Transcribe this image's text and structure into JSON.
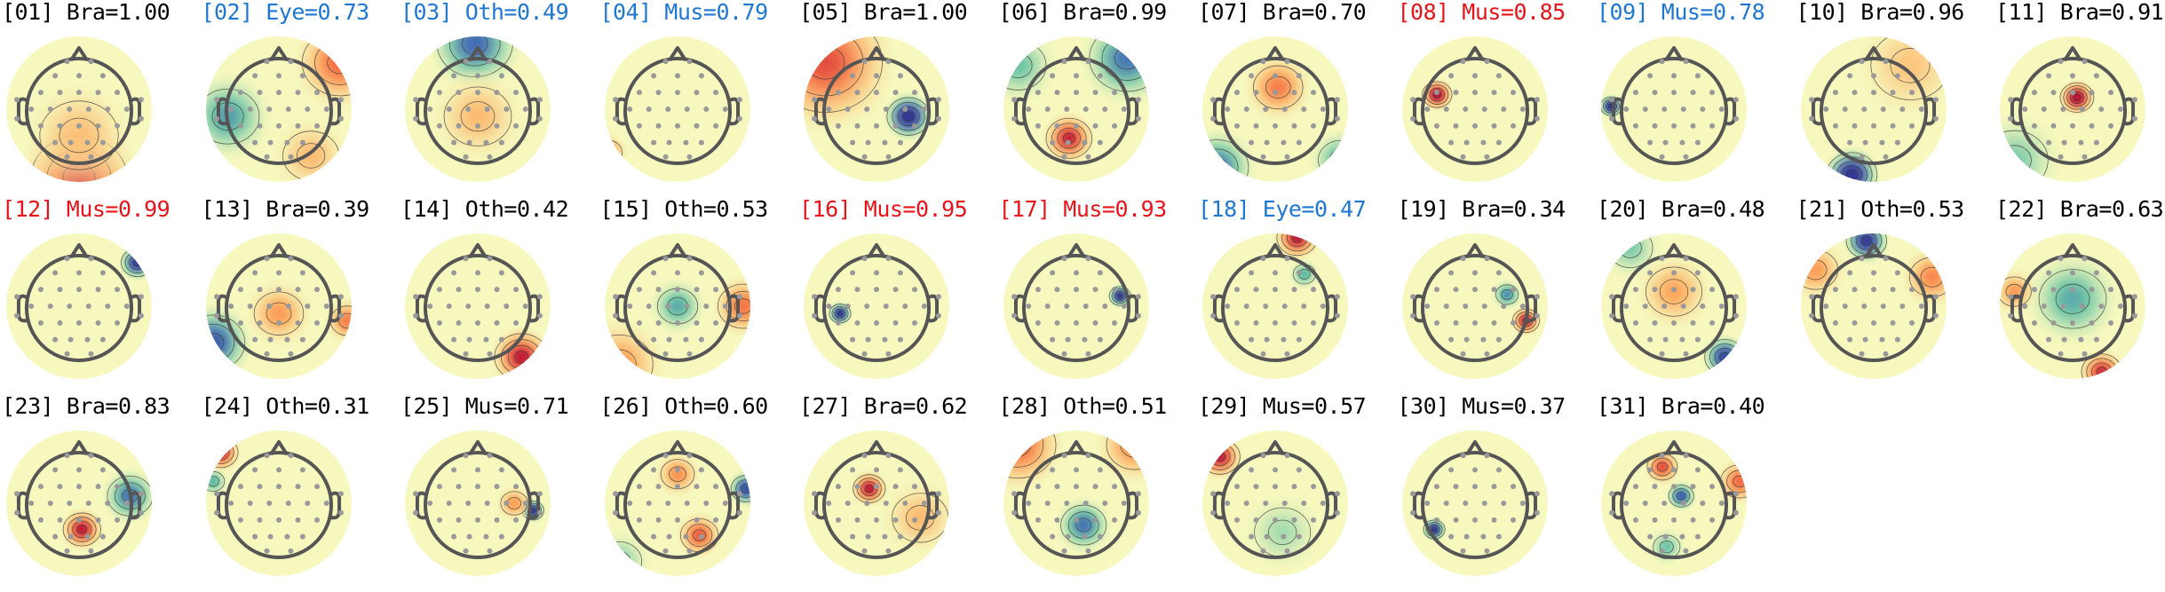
{
  "colors": {
    "default_label": "#000000",
    "eye_label": "#1f77d4",
    "muscle_flag_label": "#e8141a",
    "scalp_positive": "#c5263d",
    "scalp_negative": "#2e68b5",
    "scalp_neutral": "#f6f8bd",
    "head_outline": "#555555",
    "sensor_dot": "#999999"
  },
  "components": [
    {
      "index": "[01]",
      "text": "Bra=1.00",
      "label_color": "default",
      "label": "Bra",
      "score": 1.0,
      "sources": [
        {
          "u": 0.5,
          "v": 0.97,
          "s": 0.38,
          "w": 1.7
        },
        {
          "u": 0.5,
          "v": 0.68,
          "s": 0.35,
          "w": 0.55
        }
      ],
      "contour_icon": "isoline-icon"
    },
    {
      "index": "[02]",
      "text": "Eye=0.73",
      "label_color": "eye",
      "label": "Eye",
      "score": 0.73,
      "sources": [
        {
          "u": 0.92,
          "v": 0.18,
          "s": 0.3,
          "w": 1.4
        },
        {
          "u": 0.15,
          "v": 0.55,
          "s": 0.28,
          "w": -1.0
        },
        {
          "u": 0.72,
          "v": 0.82,
          "s": 0.25,
          "w": 0.6
        }
      ],
      "contour_icon": "isoline-icon"
    },
    {
      "index": "[03]",
      "text": "Oth=0.49",
      "label_color": "eye",
      "label": "Oth",
      "score": 0.49,
      "sources": [
        {
          "u": 0.48,
          "v": 0.05,
          "s": 0.3,
          "w": -1.4
        },
        {
          "u": 0.5,
          "v": 0.55,
          "s": 0.3,
          "w": 0.6
        }
      ],
      "contour_icon": "isoline-icon"
    },
    {
      "index": "[04]",
      "text": "Mus=0.79",
      "label_color": "eye",
      "label": "Mus",
      "score": 0.79,
      "sources": [
        {
          "u": 0.02,
          "v": 0.8,
          "s": 0.13,
          "w": 1.2
        },
        {
          "u": 0.04,
          "v": 0.95,
          "s": 0.1,
          "w": -0.8
        }
      ],
      "contour_icon": "isoline-icon"
    },
    {
      "index": "[05]",
      "text": "Bra=1.00",
      "label_color": "default",
      "label": "Bra",
      "score": 1.0,
      "sources": [
        {
          "u": 0.15,
          "v": 0.18,
          "s": 0.45,
          "w": 1.6
        },
        {
          "u": 0.72,
          "v": 0.55,
          "s": 0.16,
          "w": -2.2
        }
      ],
      "contour_icon": "isoline-icon"
    },
    {
      "index": "[06]",
      "text": "Bra=0.99",
      "label_color": "default",
      "label": "Bra",
      "score": 0.99,
      "sources": [
        {
          "u": 0.45,
          "v": 0.7,
          "s": 0.17,
          "w": 1.9
        },
        {
          "u": 0.85,
          "v": 0.15,
          "s": 0.3,
          "w": -1.3
        },
        {
          "u": 0.1,
          "v": 0.2,
          "s": 0.25,
          "w": -0.7
        }
      ],
      "contour_icon": "isoline-icon"
    },
    {
      "index": "[07]",
      "text": "Bra=0.70",
      "label_color": "default",
      "label": "Bra",
      "score": 0.7,
      "sources": [
        {
          "u": 0.52,
          "v": 0.35,
          "s": 0.22,
          "w": 1.2
        },
        {
          "u": 0.1,
          "v": 0.9,
          "s": 0.25,
          "w": -1.3
        },
        {
          "u": 0.95,
          "v": 0.85,
          "s": 0.2,
          "w": -0.9
        }
      ],
      "contour_icon": "isoline-icon"
    },
    {
      "index": "[08]",
      "text": "Mus=0.85",
      "label_color": "muscle_flag",
      "label": "Mus",
      "score": 0.85,
      "sources": [
        {
          "u": 0.24,
          "v": 0.4,
          "s": 0.11,
          "w": 2.2
        }
      ],
      "contour_icon": "isoline-icon"
    },
    {
      "index": "[09]",
      "text": "Mus=0.78",
      "label_color": "eye",
      "label": "Mus",
      "score": 0.78,
      "sources": [
        {
          "u": 0.07,
          "v": 0.48,
          "s": 0.08,
          "w": -2.2
        }
      ],
      "contour_icon": "isoline-icon"
    },
    {
      "index": "[10]",
      "text": "Bra=0.96",
      "label_color": "default",
      "label": "Bra",
      "score": 0.96,
      "sources": [
        {
          "u": 0.35,
          "v": 0.95,
          "s": 0.18,
          "w": -2.3
        },
        {
          "u": 0.75,
          "v": 0.2,
          "s": 0.35,
          "w": 0.5
        }
      ],
      "contour_icon": "isoline-icon"
    },
    {
      "index": "[11]",
      "text": "Bra=0.91",
      "label_color": "default",
      "label": "Bra",
      "score": 0.91,
      "sources": [
        {
          "u": 0.53,
          "v": 0.42,
          "s": 0.12,
          "w": 2.3
        },
        {
          "u": 0.1,
          "v": 0.85,
          "s": 0.3,
          "w": -0.6
        }
      ],
      "contour_icon": "isoline-icon"
    },
    {
      "index": "[12]",
      "text": "Mus=0.99",
      "label_color": "muscle_flag",
      "label": "Mus",
      "score": 0.99,
      "sources": [
        {
          "u": 0.9,
          "v": 0.2,
          "s": 0.12,
          "w": -2.0
        }
      ],
      "contour_icon": "isoline-icon"
    },
    {
      "index": "[13]",
      "text": "Bra=0.39",
      "label_color": "default",
      "label": "Bra",
      "score": 0.39,
      "sources": [
        {
          "u": 0.5,
          "v": 0.55,
          "s": 0.22,
          "w": 0.9
        },
        {
          "u": 0.05,
          "v": 0.75,
          "s": 0.25,
          "w": -1.6
        },
        {
          "u": 0.97,
          "v": 0.6,
          "s": 0.15,
          "w": 1.2
        }
      ],
      "contour_icon": "isoline-icon"
    },
    {
      "index": "[14]",
      "text": "Oth=0.42",
      "label_color": "default",
      "label": "Oth",
      "score": 0.42,
      "sources": [
        {
          "u": 0.8,
          "v": 0.85,
          "s": 0.2,
          "w": 2.0
        }
      ],
      "contour_icon": "isoline-icon"
    },
    {
      "index": "[15]",
      "text": "Oth=0.53",
      "label_color": "default",
      "label": "Oth",
      "score": 0.53,
      "sources": [
        {
          "u": 0.5,
          "v": 0.5,
          "s": 0.18,
          "w": -0.9
        },
        {
          "u": 0.95,
          "v": 0.5,
          "s": 0.2,
          "w": 1.3
        },
        {
          "u": 0.1,
          "v": 0.9,
          "s": 0.3,
          "w": 0.9
        }
      ],
      "contour_icon": "isoline-icon"
    },
    {
      "index": "[16]",
      "text": "Mus=0.95",
      "label_color": "muscle_flag",
      "label": "Mus",
      "score": 0.95,
      "sources": [
        {
          "u": 0.25,
          "v": 0.55,
          "s": 0.08,
          "w": -2.0
        }
      ],
      "contour_icon": "isoline-icon"
    },
    {
      "index": "[17]",
      "text": "Mus=0.93",
      "label_color": "muscle_flag",
      "label": "Mus",
      "score": 0.93,
      "sources": [
        {
          "u": 0.8,
          "v": 0.43,
          "s": 0.08,
          "w": -2.0
        }
      ],
      "contour_icon": "isoline-icon"
    },
    {
      "index": "[18]",
      "text": "Eye=0.47",
      "label_color": "eye",
      "label": "Eye",
      "score": 0.47,
      "sources": [
        {
          "u": 0.65,
          "v": 0.03,
          "s": 0.15,
          "w": 2.0
        },
        {
          "u": 0.7,
          "v": 0.28,
          "s": 0.1,
          "w": -0.8
        }
      ],
      "contour_icon": "isoline-icon"
    },
    {
      "index": "[19]",
      "text": "Bra=0.34",
      "label_color": "default",
      "label": "Bra",
      "score": 0.34,
      "sources": [
        {
          "u": 0.85,
          "v": 0.6,
          "s": 0.1,
          "w": 2.0
        },
        {
          "u": 0.72,
          "v": 0.42,
          "s": 0.1,
          "w": -1.1
        }
      ],
      "contour_icon": "isoline-icon"
    },
    {
      "index": "[20]",
      "text": "Bra=0.48",
      "label_color": "default",
      "label": "Bra",
      "score": 0.48,
      "sources": [
        {
          "u": 0.5,
          "v": 0.4,
          "s": 0.25,
          "w": 0.8
        },
        {
          "u": 0.85,
          "v": 0.85,
          "s": 0.15,
          "w": -1.8
        },
        {
          "u": 0.2,
          "v": 0.1,
          "s": 0.2,
          "w": -0.6
        }
      ],
      "contour_icon": "isoline-icon"
    },
    {
      "index": "[21]",
      "text": "Oth=0.53",
      "label_color": "default",
      "label": "Oth",
      "score": 0.53,
      "sources": [
        {
          "u": 0.45,
          "v": 0.05,
          "s": 0.15,
          "w": -2.0
        },
        {
          "u": 0.9,
          "v": 0.3,
          "s": 0.2,
          "w": 1.1
        },
        {
          "u": 0.1,
          "v": 0.25,
          "s": 0.2,
          "w": 0.9
        }
      ],
      "contour_icon": "isoline-icon"
    },
    {
      "index": "[22]",
      "text": "Bra=0.63",
      "label_color": "default",
      "label": "Bra",
      "score": 0.63,
      "sources": [
        {
          "u": 0.5,
          "v": 0.45,
          "s": 0.3,
          "w": -0.9
        },
        {
          "u": 0.7,
          "v": 0.95,
          "s": 0.15,
          "w": 1.8
        },
        {
          "u": 0.1,
          "v": 0.4,
          "s": 0.15,
          "w": 0.9
        }
      ],
      "contour_icon": "isoline-icon"
    },
    {
      "index": "[23]",
      "text": "Bra=0.83",
      "label_color": "default",
      "label": "Bra",
      "score": 0.83,
      "sources": [
        {
          "u": 0.52,
          "v": 0.68,
          "s": 0.14,
          "w": 2.0
        },
        {
          "u": 0.85,
          "v": 0.45,
          "s": 0.18,
          "w": -1.3
        }
      ],
      "contour_icon": "isoline-icon"
    },
    {
      "index": "[24]",
      "text": "Oth=0.31",
      "label_color": "default",
      "label": "Oth",
      "score": 0.31,
      "sources": [
        {
          "u": 0.1,
          "v": 0.15,
          "s": 0.13,
          "w": 2.0
        },
        {
          "u": 0.05,
          "v": 0.35,
          "s": 0.1,
          "w": -0.8
        }
      ],
      "contour_icon": "isoline-icon"
    },
    {
      "index": "[25]",
      "text": "Mus=0.71",
      "label_color": "default",
      "label": "Mus",
      "score": 0.71,
      "sources": [
        {
          "u": 0.88,
          "v": 0.55,
          "s": 0.08,
          "w": -2.0
        },
        {
          "u": 0.75,
          "v": 0.5,
          "s": 0.12,
          "w": 0.9
        }
      ],
      "contour_icon": "isoline-icon"
    },
    {
      "index": "[26]",
      "text": "Oth=0.60",
      "label_color": "default",
      "label": "Oth",
      "score": 0.6,
      "sources": [
        {
          "u": 0.65,
          "v": 0.72,
          "s": 0.15,
          "w": 1.5
        },
        {
          "u": 0.5,
          "v": 0.3,
          "s": 0.15,
          "w": 1.0
        },
        {
          "u": 0.97,
          "v": 0.4,
          "s": 0.12,
          "w": -1.7
        },
        {
          "u": 0.1,
          "v": 0.9,
          "s": 0.2,
          "w": -0.6
        }
      ],
      "contour_icon": "isoline-icon"
    },
    {
      "index": "[27]",
      "text": "Bra=0.62",
      "label_color": "default",
      "label": "Bra",
      "score": 0.62,
      "sources": [
        {
          "u": 0.45,
          "v": 0.4,
          "s": 0.12,
          "w": 2.0
        },
        {
          "u": 0.8,
          "v": 0.6,
          "s": 0.25,
          "w": 0.6
        }
      ],
      "contour_icon": "isoline-icon"
    },
    {
      "index": "[28]",
      "text": "Oth=0.51",
      "label_color": "default",
      "label": "Oth",
      "score": 0.51,
      "sources": [
        {
          "u": 0.55,
          "v": 0.65,
          "s": 0.18,
          "w": -1.3
        },
        {
          "u": 0.1,
          "v": 0.1,
          "s": 0.3,
          "w": 1.4
        },
        {
          "u": 0.9,
          "v": 0.1,
          "s": 0.25,
          "w": 1.1
        }
      ],
      "contour_icon": "isoline-icon"
    },
    {
      "index": "[29]",
      "text": "Mus=0.57",
      "label_color": "default",
      "label": "Mus",
      "score": 0.57,
      "sources": [
        {
          "u": 0.12,
          "v": 0.18,
          "s": 0.15,
          "w": 2.0
        },
        {
          "u": 0.55,
          "v": 0.7,
          "s": 0.25,
          "w": -0.4
        }
      ],
      "contour_icon": "isoline-icon"
    },
    {
      "index": "[30]",
      "text": "Mus=0.37",
      "label_color": "default",
      "label": "Mus",
      "score": 0.37,
      "sources": [
        {
          "u": 0.22,
          "v": 0.68,
          "s": 0.08,
          "w": -2.0
        }
      ],
      "contour_icon": "isoline-icon"
    },
    {
      "index": "[31]",
      "text": "Bra=0.40",
      "label_color": "default",
      "label": "Bra",
      "score": 0.4,
      "sources": [
        {
          "u": 0.42,
          "v": 0.25,
          "s": 0.12,
          "w": 1.6
        },
        {
          "u": 0.55,
          "v": 0.45,
          "s": 0.1,
          "w": -1.5
        },
        {
          "u": 0.95,
          "v": 0.35,
          "s": 0.15,
          "w": 1.4
        },
        {
          "u": 0.45,
          "v": 0.8,
          "s": 0.12,
          "w": -0.7
        }
      ],
      "contour_icon": "isoline-icon"
    }
  ]
}
